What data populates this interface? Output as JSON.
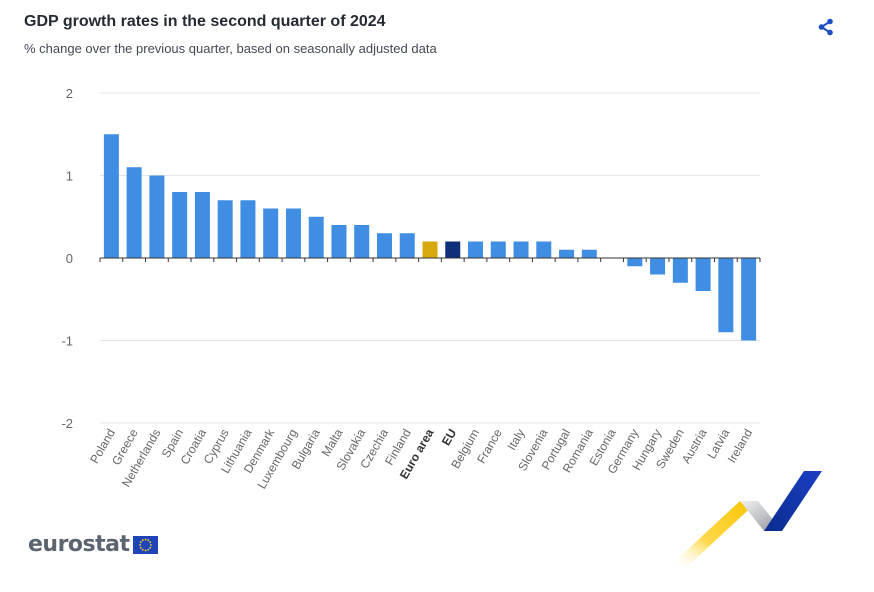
{
  "header": {
    "title": "GDP growth rates in the second quarter of 2024",
    "subtitle": "% change over the previous quarter, based on seasonally adjusted data"
  },
  "toolbar": {
    "share_icon": "share-icon"
  },
  "branding": {
    "logo_text": "eurostat"
  },
  "colors": {
    "bar_default": "#3f8ee3",
    "bar_euro_area": "#d7a90e",
    "bar_eu": "#0e2f7a",
    "grid": "#e6e6e6",
    "axis_label": "#666666",
    "share": "#1d4fc4"
  },
  "chart_data": {
    "type": "bar",
    "title": "GDP growth rates in the second quarter of 2024",
    "subtitle": "% change over the previous quarter, based on seasonally adjusted data",
    "xlabel": "",
    "ylabel": "",
    "ylim": [
      -2,
      2
    ],
    "yticks": [
      2,
      1,
      0,
      -1,
      -2
    ],
    "grid": true,
    "legend": "none",
    "categories": [
      "Poland",
      "Greece",
      "Netherlands",
      "Spain",
      "Croatia",
      "Cyprus",
      "Lithuania",
      "Denmark",
      "Luxembourg",
      "Bulgaria",
      "Malta",
      "Slovakia",
      "Czechia",
      "Finland",
      "Euro area",
      "EU",
      "Belgium",
      "France",
      "Italy",
      "Slovenia",
      "Portugal",
      "Romania",
      "Estonia",
      "Germany",
      "Hungary",
      "Sweden",
      "Austria",
      "Latvia",
      "Ireland"
    ],
    "values": [
      1.5,
      1.1,
      1.0,
      0.8,
      0.8,
      0.7,
      0.7,
      0.6,
      0.6,
      0.5,
      0.4,
      0.4,
      0.3,
      0.3,
      0.2,
      0.2,
      0.2,
      0.2,
      0.2,
      0.2,
      0.1,
      0.1,
      0.0,
      -0.1,
      -0.2,
      -0.3,
      -0.4,
      -0.9,
      -1.0
    ],
    "highlight": {
      "Euro area": "bar_euro_area",
      "EU": "bar_eu"
    },
    "bold_labels": [
      "Euro area",
      "EU"
    ]
  }
}
